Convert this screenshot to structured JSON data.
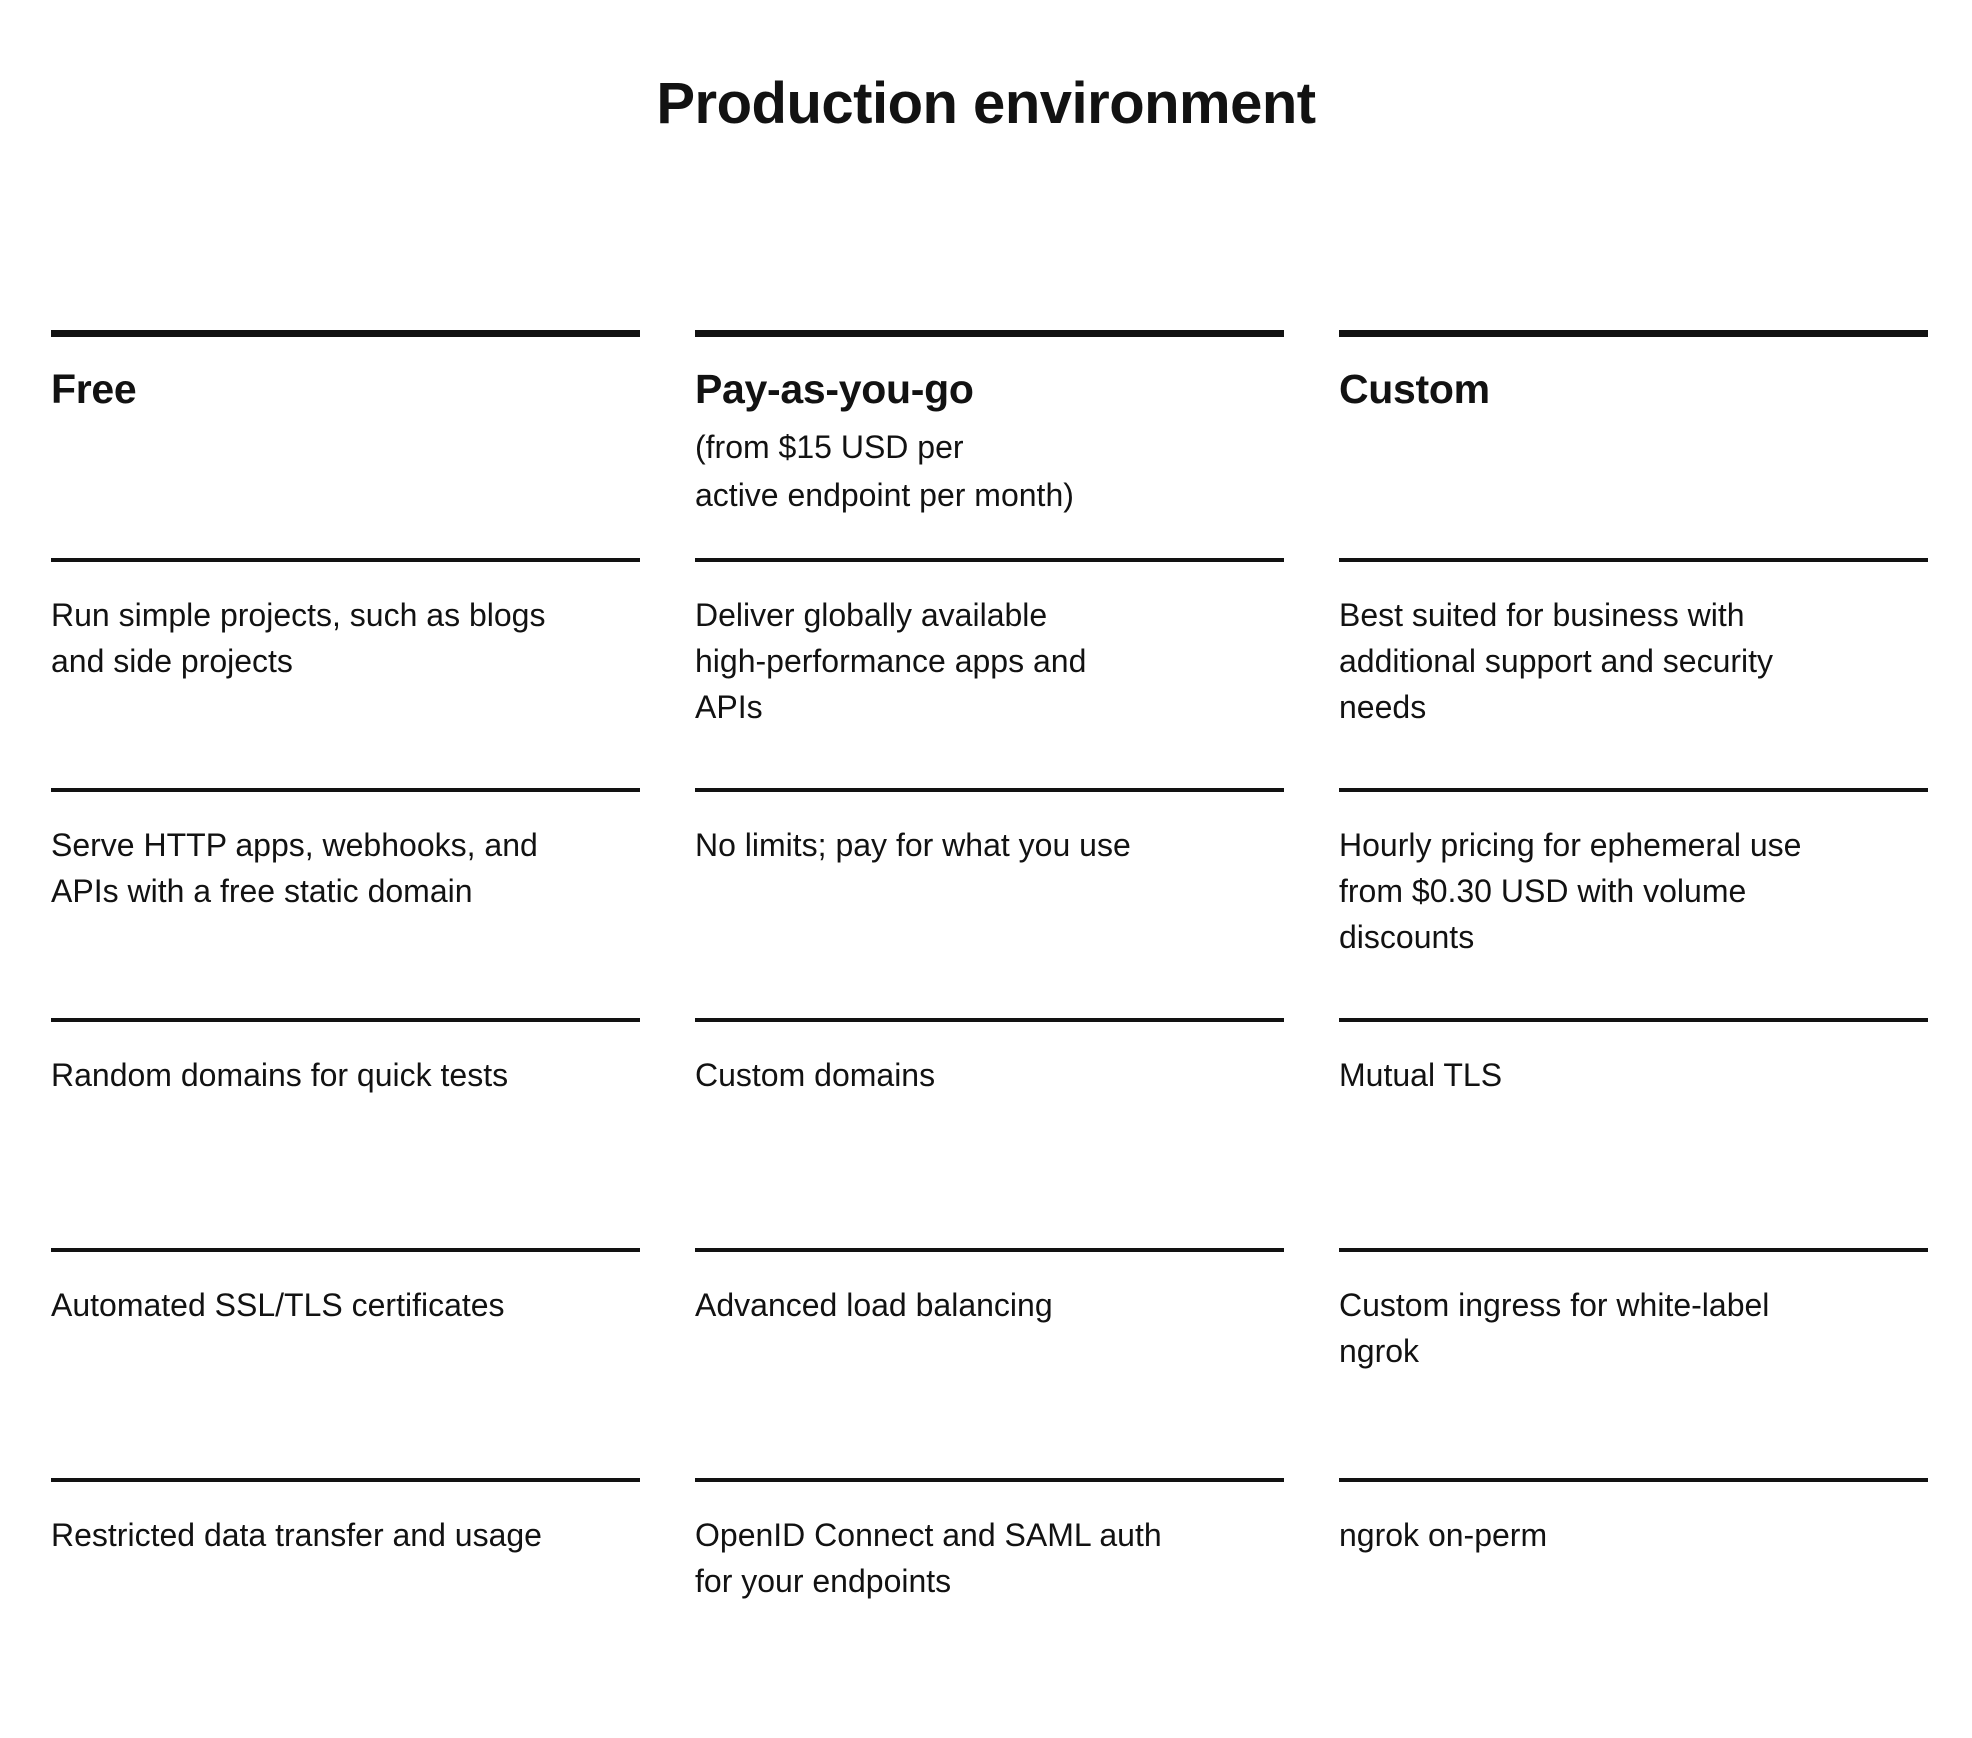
{
  "page": {
    "title": "Production environment"
  },
  "colors": {
    "background": "#ffffff",
    "text": "#121212",
    "rule": "#121212"
  },
  "table": {
    "columns": [
      {
        "name": "Free",
        "price_note": "",
        "features": [
          "Run simple projects, such as blogs\nand side projects",
          "Serve HTTP apps, webhooks, and\nAPIs with a free static domain",
          "Random domains for quick tests",
          "Automated SSL/TLS certificates",
          "Restricted data transfer and usage"
        ]
      },
      {
        "name": "Pay-as-you-go",
        "price_note": "(from $15 USD per\nactive endpoint per month)",
        "features": [
          "Deliver globally available\nhigh-performance apps and\nAPIs",
          "No limits; pay for what you use",
          "Custom domains",
          "Advanced load balancing",
          "OpenID Connect and SAML auth\nfor your endpoints"
        ]
      },
      {
        "name": "Custom",
        "price_note": "",
        "features": [
          "Best suited for business with\nadditional support and security\nneeds",
          "Hourly pricing for ephemeral use\nfrom $0.30 USD with volume\ndiscounts",
          "Mutual TLS",
          "Custom ingress for white-label\nngrok",
          "ngrok on-perm"
        ]
      }
    ]
  }
}
